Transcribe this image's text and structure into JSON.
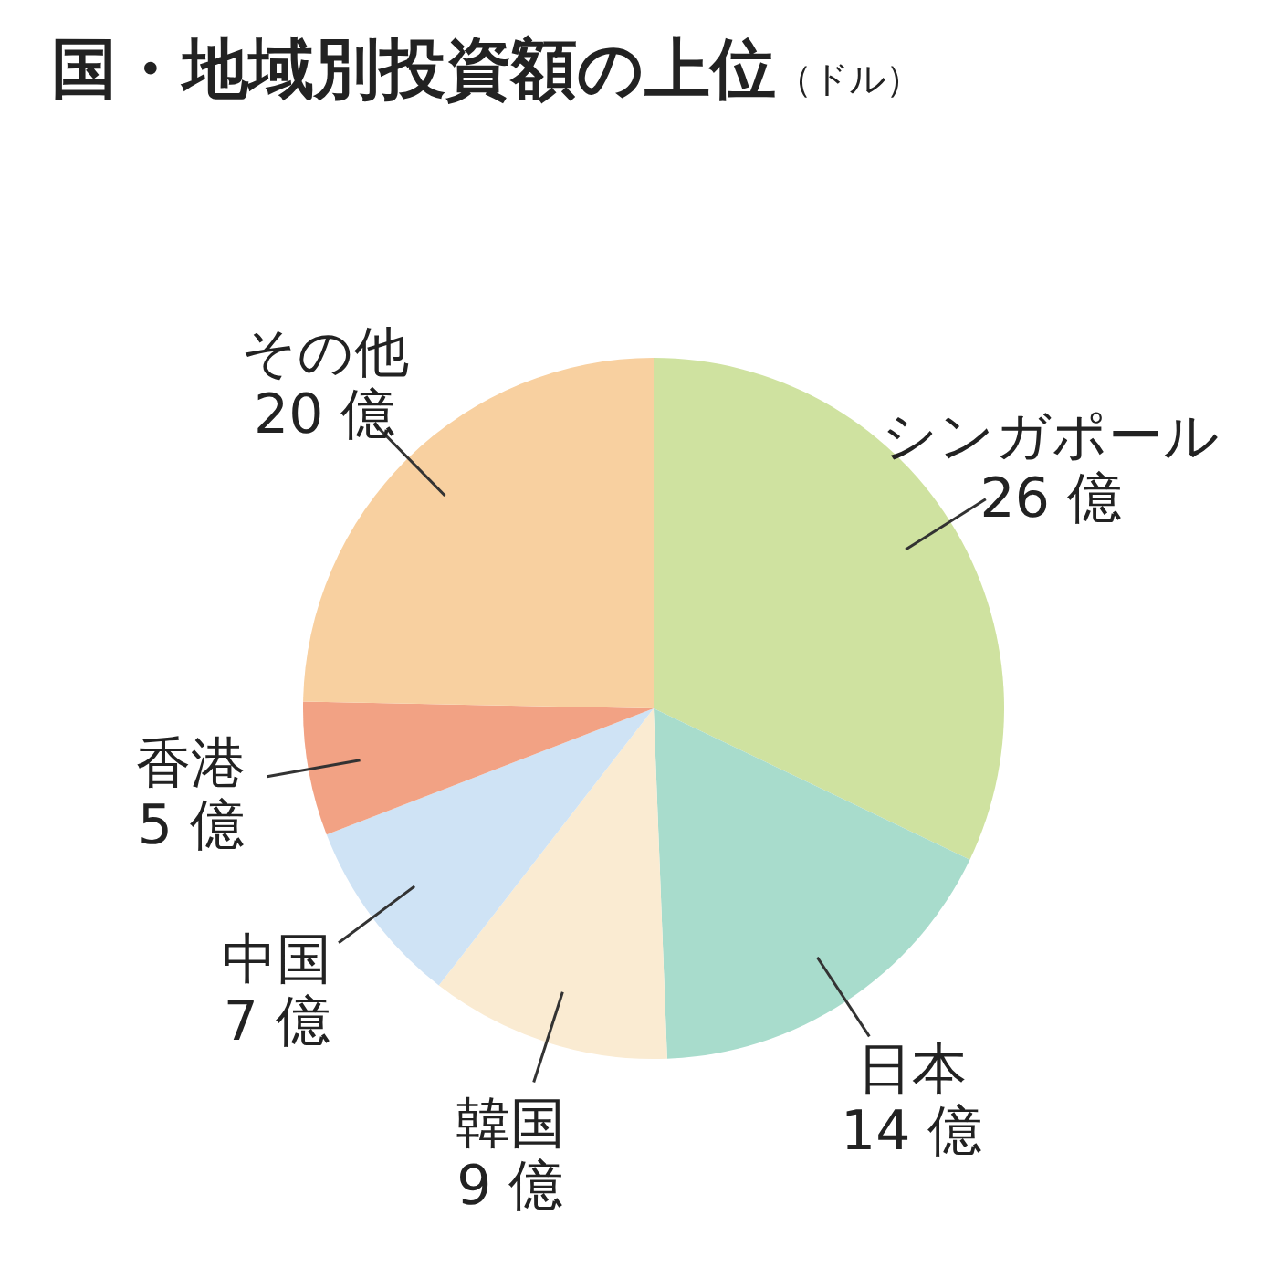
{
  "chart_data": {
    "type": "pie",
    "title": "国・地域別投資額の上位",
    "subtitle": "（ドル）",
    "categories": [
      "シンガポール",
      "日本",
      "韓国",
      "中国",
      "香港",
      "その他"
    ],
    "values": [
      26,
      14,
      9,
      7,
      5,
      20
    ],
    "value_labels": [
      "26 億",
      "14 億",
      "9 億",
      "7 億",
      "5 億",
      "20 億"
    ],
    "colors": [
      "#cfe2a0",
      "#a8dccc",
      "#faebd2",
      "#cfe3f5",
      "#f2a284",
      "#f8d0a0"
    ]
  }
}
